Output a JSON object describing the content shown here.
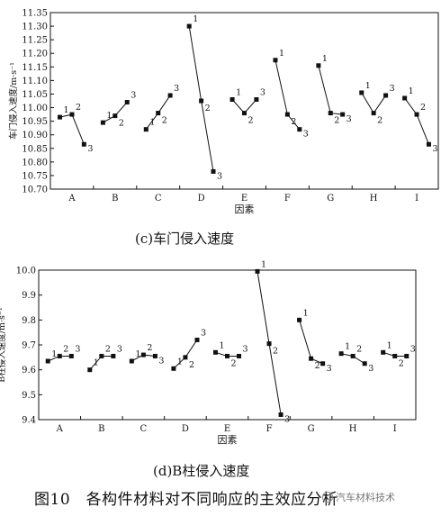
{
  "figure": {
    "title": "图10　各构件材料对不同响应的主效应分析",
    "watermark": "汽车材料技术"
  },
  "chart_data": [
    {
      "type": "line",
      "caption": "(c)车门侵入速度",
      "xlabel": "因素",
      "ylabel": "车门侵入速度/m·s⁻¹",
      "categories": [
        "A",
        "B",
        "C",
        "D",
        "E",
        "F",
        "G",
        "H",
        "I"
      ],
      "ylim": [
        10.7,
        11.35
      ],
      "yticks": [
        "10.70",
        "10.75",
        "10.80",
        "10.85",
        "10.90",
        "10.95",
        "11.00",
        "11.05",
        "11.10",
        "11.15",
        "11.20",
        "11.25",
        "11.30",
        "11.35"
      ],
      "point_labels": [
        "1",
        "2",
        "3"
      ],
      "values": [
        [
          10.965,
          10.975,
          10.865
        ],
        [
          10.945,
          10.97,
          11.02
        ],
        [
          10.92,
          10.98,
          11.045
        ],
        [
          11.3,
          11.025,
          10.765
        ],
        [
          11.03,
          10.98,
          11.03
        ],
        [
          11.175,
          10.975,
          10.92
        ],
        [
          11.155,
          10.98,
          10.975
        ],
        [
          11.055,
          10.98,
          11.045
        ],
        [
          11.035,
          10.975,
          10.865
        ]
      ]
    },
    {
      "type": "line",
      "caption": "(d)B柱侵入速度",
      "xlabel": "因素",
      "ylabel": "B柱侵入速度/m·s⁻¹",
      "categories": [
        "A",
        "B",
        "C",
        "D",
        "E",
        "F",
        "G",
        "H",
        "I"
      ],
      "ylim": [
        9.4,
        10.0
      ],
      "yticks": [
        "9.4",
        "9.5",
        "9.6",
        "9.7",
        "9.8",
        "9.9",
        "10.0"
      ],
      "point_labels": [
        "1",
        "2",
        "3"
      ],
      "values": [
        [
          9.635,
          9.655,
          9.655
        ],
        [
          9.6,
          9.655,
          9.655
        ],
        [
          9.635,
          9.66,
          9.655
        ],
        [
          9.605,
          9.65,
          9.72
        ],
        [
          9.67,
          9.655,
          9.655
        ],
        [
          9.995,
          9.705,
          9.42
        ],
        [
          9.8,
          9.645,
          9.625
        ],
        [
          9.665,
          9.655,
          9.625
        ],
        [
          9.67,
          9.655,
          9.655
        ]
      ]
    }
  ]
}
